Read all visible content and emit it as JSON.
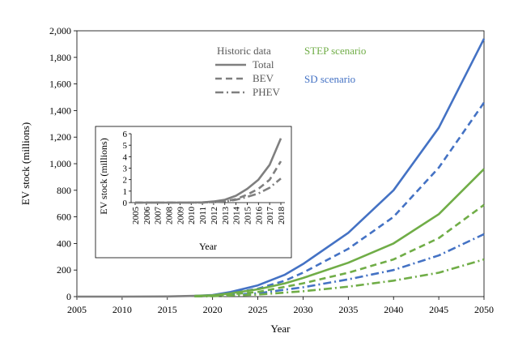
{
  "colors": {
    "historic": "#7f7f7f",
    "step": "#70ad47",
    "sd": "#4472c4"
  },
  "legend": {
    "historic_title": "Historic data",
    "step_title": "STEP scenario",
    "sd_title": "SD scenario",
    "items": [
      {
        "label": "Total",
        "style": "solid"
      },
      {
        "label": "BEV",
        "style": "dashed"
      },
      {
        "label": "PHEV",
        "style": "dashdot"
      }
    ]
  },
  "chart_data": [
    {
      "type": "line",
      "xlabel": "Year",
      "ylabel": "EV stock (millions)",
      "xlim": [
        2005,
        2050
      ],
      "ylim": [
        0,
        2000
      ],
      "xticks": [
        "2005",
        "2010",
        "2015",
        "2020",
        "2025",
        "2030",
        "2035",
        "2040",
        "2045",
        "2050"
      ],
      "yticks": [
        "0",
        "200",
        "400",
        "600",
        "800",
        "1,000",
        "1,200",
        "1,400",
        "1,600",
        "1,800",
        "2,000"
      ],
      "series": [
        {
          "name": "Total",
          "scenario": "Historic data",
          "color": "#7f7f7f",
          "style": "solid",
          "x": [
            2005,
            2010,
            2015,
            2018
          ],
          "y": [
            0,
            0,
            1,
            5.6
          ]
        },
        {
          "name": "Total",
          "scenario": "SD scenario",
          "color": "#4472c4",
          "style": "solid",
          "x": [
            2018,
            2020,
            2022,
            2025,
            2028,
            2030,
            2035,
            2040,
            2045,
            2050
          ],
          "y": [
            5.6,
            12,
            35,
            85,
            165,
            245,
            480,
            800,
            1270,
            1940
          ]
        },
        {
          "name": "BEV",
          "scenario": "SD scenario",
          "color": "#4472c4",
          "style": "dashed",
          "x": [
            2018,
            2020,
            2022,
            2025,
            2028,
            2030,
            2035,
            2040,
            2045,
            2050
          ],
          "y": [
            3.6,
            8,
            25,
            60,
            120,
            180,
            360,
            600,
            970,
            1460
          ]
        },
        {
          "name": "PHEV",
          "scenario": "SD scenario",
          "color": "#4472c4",
          "style": "dashdot",
          "x": [
            2018,
            2020,
            2025,
            2030,
            2035,
            2040,
            2045,
            2050
          ],
          "y": [
            2,
            4,
            25,
            70,
            130,
            200,
            310,
            470
          ]
        },
        {
          "name": "Total",
          "scenario": "STEP scenario",
          "color": "#70ad47",
          "style": "solid",
          "x": [
            2018,
            2020,
            2022,
            2025,
            2028,
            2030,
            2035,
            2040,
            2045,
            2050
          ],
          "y": [
            5.6,
            10,
            25,
            55,
            100,
            140,
            255,
            400,
            620,
            960
          ]
        },
        {
          "name": "BEV",
          "scenario": "STEP scenario",
          "color": "#70ad47",
          "style": "dashed",
          "x": [
            2018,
            2020,
            2025,
            2030,
            2035,
            2040,
            2045,
            2050
          ],
          "y": [
            3.6,
            6,
            35,
            100,
            180,
            280,
            440,
            690
          ]
        },
        {
          "name": "PHEV",
          "scenario": "STEP scenario",
          "color": "#70ad47",
          "style": "dashdot",
          "x": [
            2018,
            2020,
            2025,
            2030,
            2035,
            2040,
            2045,
            2050
          ],
          "y": [
            2,
            3,
            15,
            40,
            75,
            120,
            180,
            280
          ]
        }
      ]
    },
    {
      "type": "line",
      "xlabel": "Year",
      "ylabel": "EV stock (millions)",
      "ylim": [
        0,
        6
      ],
      "yticks": [
        "0",
        "1",
        "2",
        "3",
        "4",
        "5",
        "6"
      ],
      "categories": [
        "2005",
        "2006",
        "2007",
        "2008",
        "2009",
        "2010",
        "2011",
        "2012",
        "2013",
        "2014",
        "2015",
        "2016",
        "2017",
        "2018"
      ],
      "series": [
        {
          "name": "Total",
          "color": "#7f7f7f",
          "style": "solid",
          "values": [
            0,
            0,
            0,
            0,
            0,
            0,
            0.02,
            0.1,
            0.25,
            0.6,
            1.2,
            2.0,
            3.3,
            5.6
          ]
        },
        {
          "name": "BEV",
          "color": "#7f7f7f",
          "style": "dashed",
          "values": [
            0,
            0,
            0,
            0,
            0,
            0,
            0.01,
            0.05,
            0.12,
            0.3,
            0.7,
            1.2,
            2.0,
            3.6
          ]
        },
        {
          "name": "PHEV",
          "color": "#7f7f7f",
          "style": "dashdot",
          "values": [
            0,
            0,
            0,
            0,
            0,
            0,
            0.01,
            0.04,
            0.1,
            0.25,
            0.5,
            0.8,
            1.3,
            2.1
          ]
        }
      ]
    }
  ]
}
